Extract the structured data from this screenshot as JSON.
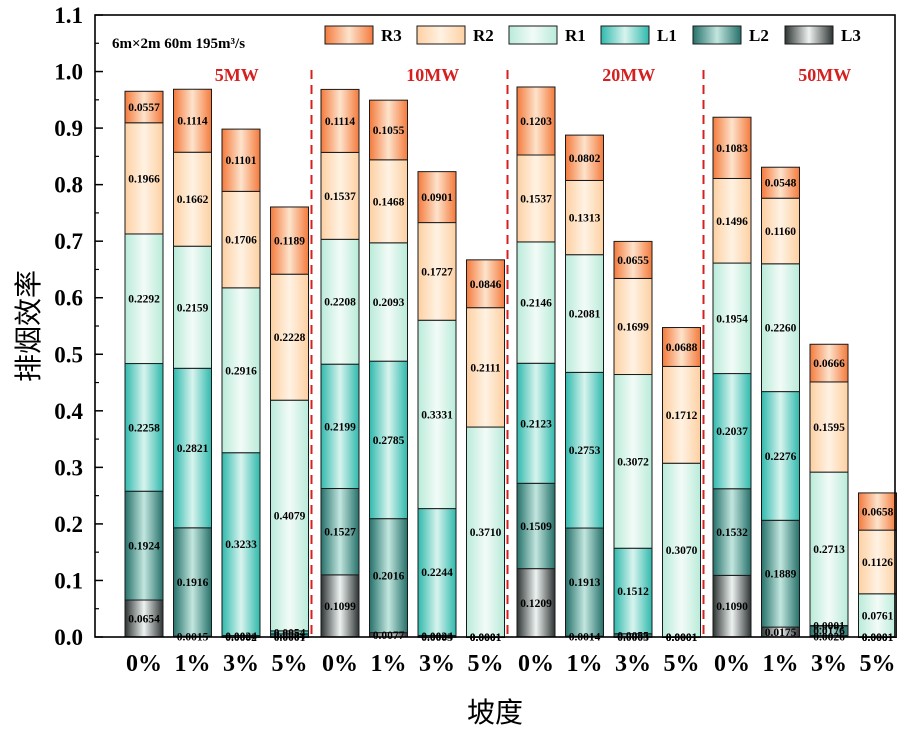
{
  "chart_data": {
    "type": "bar",
    "stacked": true,
    "condition_label": "6m×2m 60m 195m³/s",
    "ylabel": "排烟效率",
    "xlabel": "坡度",
    "ylim": [
      0,
      1.1
    ],
    "yticks": [
      "0.0",
      "0.1",
      "0.2",
      "0.3",
      "0.4",
      "0.5",
      "0.6",
      "0.7",
      "0.8",
      "0.9",
      "1.0",
      "1.1"
    ],
    "grid": false,
    "legend_position": "top",
    "stack_order": [
      "L3",
      "L2",
      "L1",
      "R1",
      "R2",
      "R3"
    ],
    "legend": [
      {
        "key": "R3",
        "label": "R3"
      },
      {
        "key": "R2",
        "label": "R2"
      },
      {
        "key": "R1",
        "label": "R1"
      },
      {
        "key": "L1",
        "label": "L1"
      },
      {
        "key": "L2",
        "label": "L2"
      },
      {
        "key": "L3",
        "label": "L3"
      }
    ],
    "colors": {
      "R3": {
        "light": "#fde3cc",
        "dark": "#f47a3c"
      },
      "R2": {
        "light": "#fff2e3",
        "dark": "#fdd0a2"
      },
      "R1": {
        "light": "#f2fbf7",
        "dark": "#b9ebd9"
      },
      "L1": {
        "light": "#d8f4ee",
        "dark": "#2fb9ad"
      },
      "L2": {
        "light": "#c2e6df",
        "dark": "#25716a"
      },
      "L3": {
        "light": "#eef3f2",
        "dark": "#2d3333"
      }
    },
    "separator_color": "#d62020",
    "group_label_color": "#d62020",
    "groups": [
      {
        "name": "5MW",
        "bars": [
          {
            "category": "0%",
            "L3": {
              "value": 0.0654,
              "label": "0.0654"
            },
            "L2": {
              "value": 0.1924,
              "label": "0.1924"
            },
            "L1": {
              "value": 0.2258,
              "label": "0.2258"
            },
            "R1": {
              "value": 0.2292,
              "label": "0.2292"
            },
            "R2": {
              "value": 0.1966,
              "label": "0.1966"
            },
            "R3": {
              "value": 0.0557,
              "label": "0.0557"
            }
          },
          {
            "category": "1%",
            "L3": {
              "value": 0.0015,
              "label": "0.0015"
            },
            "L2": {
              "value": 0.1916,
              "label": "0.1916"
            },
            "L1": {
              "value": 0.2821,
              "label": "0.2821"
            },
            "R1": {
              "value": 0.2159,
              "label": "0.2159"
            },
            "R2": {
              "value": 0.1662,
              "label": "0.1662"
            },
            "R3": {
              "value": 0.1114,
              "label": "0.1114"
            }
          },
          {
            "category": "3%",
            "L3": {
              "value": 0.0002,
              "label": "0.0002"
            },
            "L2": {
              "value": 0.0024,
              "label": "0.0024"
            },
            "L1": {
              "value": 0.3233,
              "label": "0.3233"
            },
            "R1": {
              "value": 0.2916,
              "label": "0.2916"
            },
            "R2": {
              "value": 0.1706,
              "label": "0.1706"
            },
            "R3": {
              "value": 0.1101,
              "label": "0.1101"
            }
          },
          {
            "category": "5%",
            "L3": {
              "value": 0.0001,
              "label": "0.0001"
            },
            "L2": {
              "value": 0.0054,
              "label": "0.0054"
            },
            "L1": {
              "value": 0.0054,
              "label": "0.0054"
            },
            "R1": {
              "value": 0.4079,
              "label": "0.4079"
            },
            "R2": {
              "value": 0.2228,
              "label": "0.2228"
            },
            "R3": {
              "value": 0.1189,
              "label": "0.1189"
            }
          }
        ]
      },
      {
        "name": "10MW",
        "bars": [
          {
            "category": "0%",
            "L3": {
              "value": 0.1099,
              "label": "0.1099"
            },
            "L2": {
              "value": 0.1527,
              "label": "0.1527"
            },
            "L1": {
              "value": 0.2199,
              "label": "0.2199"
            },
            "R1": {
              "value": 0.2208,
              "label": "0.2208"
            },
            "R2": {
              "value": 0.1537,
              "label": "0.1537"
            },
            "R3": {
              "value": 0.1114,
              "label": "0.1114"
            }
          },
          {
            "category": "1%",
            "L3": {
              "value": 0.0077,
              "label": "0.0077"
            },
            "L2": {
              "value": 0.2016,
              "label": "0.2016"
            },
            "L1": {
              "value": 0.2785,
              "label": "0.2785"
            },
            "R1": {
              "value": 0.2093,
              "label": "0.2093"
            },
            "R2": {
              "value": 0.1468,
              "label": "0.1468"
            },
            "R3": {
              "value": 0.1055,
              "label": "0.1055"
            }
          },
          {
            "category": "3%",
            "L3": {
              "value": 0.0003,
              "label": "0.0003"
            },
            "L2": {
              "value": 0.0024,
              "label": "0.0024"
            },
            "L1": {
              "value": 0.2244,
              "label": "0.2244"
            },
            "R1": {
              "value": 0.3331,
              "label": "0.3331"
            },
            "R2": {
              "value": 0.1727,
              "label": "0.1727"
            },
            "R3": {
              "value": 0.0901,
              "label": "0.0901"
            }
          },
          {
            "category": "5%",
            "L3": {
              "value": 0.0001,
              "label": "0.0001"
            },
            "L2": {
              "value": 0.0001,
              "label": "0.0001"
            },
            "L1": {
              "value": 0.0001,
              "label": "0.0001"
            },
            "R1": {
              "value": 0.371,
              "label": "0.3710"
            },
            "R2": {
              "value": 0.2111,
              "label": "0.2111"
            },
            "R3": {
              "value": 0.0846,
              "label": "0.0846"
            }
          }
        ]
      },
      {
        "name": "20MW",
        "bars": [
          {
            "category": "0%",
            "L3": {
              "value": 0.1209,
              "label": "0.1209"
            },
            "L2": {
              "value": 0.1509,
              "label": "0.1509"
            },
            "L1": {
              "value": 0.2123,
              "label": "0.2123"
            },
            "R1": {
              "value": 0.2146,
              "label": "0.2146"
            },
            "R2": {
              "value": 0.1537,
              "label": "0.1537"
            },
            "R3": {
              "value": 0.1203,
              "label": "0.1203"
            }
          },
          {
            "category": "1%",
            "L3": {
              "value": 0.0014,
              "label": "0.0014"
            },
            "L2": {
              "value": 0.1913,
              "label": "0.1913"
            },
            "L1": {
              "value": 0.2753,
              "label": "0.2753"
            },
            "R1": {
              "value": 0.2081,
              "label": "0.2081"
            },
            "R2": {
              "value": 0.1313,
              "label": "0.1313"
            },
            "R3": {
              "value": 0.0802,
              "label": "0.0802"
            }
          },
          {
            "category": "3%",
            "L3": {
              "value": 0.0003,
              "label": "0.0003"
            },
            "L2": {
              "value": 0.0055,
              "label": "0.0055"
            },
            "L1": {
              "value": 0.1512,
              "label": "0.1512"
            },
            "R1": {
              "value": 0.3072,
              "label": "0.3072"
            },
            "R2": {
              "value": 0.1699,
              "label": "0.1699"
            },
            "R3": {
              "value": 0.0655,
              "label": "0.0655"
            }
          },
          {
            "category": "5%",
            "L3": {
              "value": 0.0001,
              "label": "0.0001"
            },
            "L2": {
              "value": 0.0001,
              "label": "0.0001"
            },
            "L1": {
              "value": 0.0001,
              "label": "0.0001"
            },
            "R1": {
              "value": 0.307,
              "label": "0.3070"
            },
            "R2": {
              "value": 0.1712,
              "label": "0.1712"
            },
            "R3": {
              "value": 0.0688,
              "label": "0.0688"
            }
          }
        ]
      },
      {
        "name": "50MW",
        "bars": [
          {
            "category": "0%",
            "L3": {
              "value": 0.109,
              "label": "0.1090"
            },
            "L2": {
              "value": 0.1532,
              "label": "0.1532"
            },
            "L1": {
              "value": 0.2037,
              "label": "0.2037"
            },
            "R1": {
              "value": 0.1954,
              "label": "0.1954"
            },
            "R2": {
              "value": 0.1496,
              "label": "0.1496"
            },
            "R3": {
              "value": 0.1083,
              "label": "0.1083"
            }
          },
          {
            "category": "1%",
            "L3": {
              "value": 0.0175,
              "label": "0.0175"
            },
            "L2": {
              "value": 0.1889,
              "label": "0.1889"
            },
            "L1": {
              "value": 0.2276,
              "label": "0.2276"
            },
            "R1": {
              "value": 0.226,
              "label": "0.2260"
            },
            "R2": {
              "value": 0.116,
              "label": "0.1160"
            },
            "R3": {
              "value": 0.0548,
              "label": "0.0548"
            }
          },
          {
            "category": "3%",
            "L3": {
              "value": 0.0026,
              "label": "0.0026"
            },
            "L2": {
              "value": 0.0176,
              "label": "0.0176"
            },
            "L1": {
              "value": 0.0001,
              "label": "0.0001"
            },
            "R1": {
              "value": 0.2713,
              "label": "0.2713"
            },
            "R2": {
              "value": 0.1595,
              "label": "0.1595"
            },
            "R3": {
              "value": 0.0666,
              "label": "0.0666"
            }
          },
          {
            "category": "5%",
            "L3": {
              "value": 0.0001,
              "label": "0.0001"
            },
            "L2": {
              "value": 0.0001,
              "label": "0.0001"
            },
            "L1": {
              "value": 0.0001,
              "label": "0.0001"
            },
            "R1": {
              "value": 0.0761,
              "label": "0.0761"
            },
            "R2": {
              "value": 0.1126,
              "label": "0.1126"
            },
            "R3": {
              "value": 0.0658,
              "label": "0.0658"
            }
          }
        ]
      }
    ]
  }
}
